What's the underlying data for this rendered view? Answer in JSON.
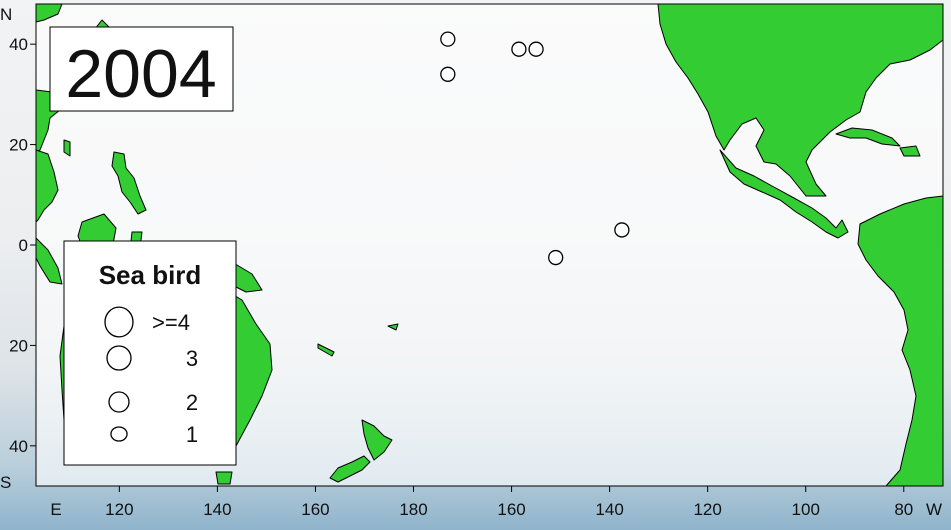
{
  "year": "2004",
  "legend": {
    "title": "Sea bird",
    "entries": [
      {
        "label": ">=4",
        "count": 4
      },
      {
        "label": "3",
        "count": 3
      },
      {
        "label": "2",
        "count": 2
      },
      {
        "label": "1",
        "count": 1
      }
    ]
  },
  "axes": {
    "lon_ticks": [
      {
        "label": "120",
        "lon_east": 120
      },
      {
        "label": "140",
        "lon_east": 140
      },
      {
        "label": "160",
        "lon_east": 160
      },
      {
        "label": "180",
        "lon_east": 180
      },
      {
        "label": "160",
        "lon_east": 200
      },
      {
        "label": "140",
        "lon_east": 220
      },
      {
        "label": "120",
        "lon_east": 240
      },
      {
        "label": "100",
        "lon_east": 260
      },
      {
        "label": "80",
        "lon_east": 280
      }
    ],
    "lat_ticks": [
      {
        "label": "40",
        "lat": 40
      },
      {
        "label": "20",
        "lat": 20
      },
      {
        "label": "0",
        "lat": 0
      },
      {
        "label": "20",
        "lat": -20
      },
      {
        "label": "40",
        "lat": -40
      }
    ],
    "north_label": "N",
    "south_label": "S",
    "east_label": "E",
    "west_label": "W",
    "lon_range_east": [
      103,
      288
    ],
    "lat_range": [
      -48,
      48
    ]
  },
  "colors": {
    "land": "#33cc33",
    "outline": "#000000",
    "frame_bg": "#ffffff"
  },
  "observations": [
    {
      "lat": 41,
      "lon_east": 187,
      "count": 1
    },
    {
      "lat": 34,
      "lon_east": 187,
      "count": 1
    },
    {
      "lat": 39,
      "lon_east": 201.5,
      "count": 1
    },
    {
      "lat": 39,
      "lon_east": 205,
      "count": 1
    },
    {
      "lat": 3,
      "lon_east": 222.5,
      "count": 1
    },
    {
      "lat": -2.5,
      "lon_east": 209,
      "count": 1
    }
  ]
}
